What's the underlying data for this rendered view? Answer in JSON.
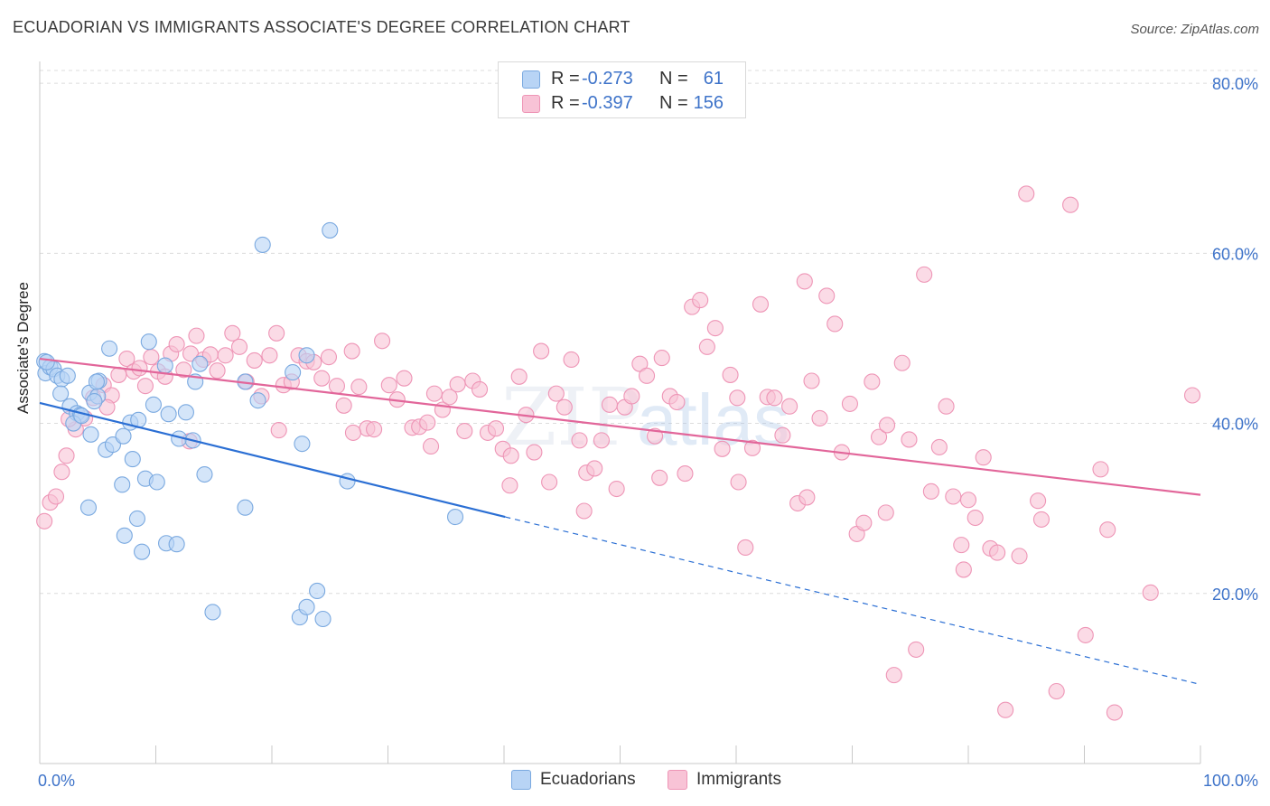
{
  "header": {
    "title": "ECUADORIAN VS IMMIGRANTS ASSOCIATE'S DEGREE CORRELATION CHART",
    "source": "Source: ZipAtlas.com"
  },
  "legend_top": {
    "rows": [
      {
        "r_label": "R =",
        "r_value": "-0.273",
        "n_label": "N =",
        "n_value": "61"
      },
      {
        "r_label": "R =",
        "r_value": "-0.397",
        "n_label": "N =",
        "n_value": "156"
      }
    ]
  },
  "legend_bottom": {
    "items": [
      {
        "label": "Ecuadorians"
      },
      {
        "label": "Immigrants"
      }
    ]
  },
  "colors": {
    "ecuadorian_fill": "#b8d4f5",
    "ecuadorian_stroke": "#7aa9e0",
    "ecuadorian_line": "#2b6fd4",
    "immigrant_fill": "#f8c3d6",
    "immigrant_stroke": "#ee95b6",
    "immigrant_line": "#e2669a",
    "value_text": "#3e73c9",
    "grid": "#dcdcdc"
  },
  "chart_data": {
    "type": "scatter",
    "title": "ECUADORIAN VS IMMIGRANTS ASSOCIATE'S DEGREE CORRELATION CHART",
    "xlabel": "",
    "ylabel": "Associate's Degree",
    "xlim": [
      0,
      100
    ],
    "ylim": [
      0,
      81.5
    ],
    "x_tick_labels": [
      "0.0%",
      "100.0%"
    ],
    "y_ticks": [
      20,
      40,
      60,
      80
    ],
    "y_tick_labels": [
      "20.0%",
      "40.0%",
      "60.0%",
      "80.0%"
    ],
    "grid": true,
    "watermark": "ZIPatlas",
    "series": [
      {
        "name": "Ecuadorians",
        "r": -0.273,
        "n": 61,
        "trend": {
          "x0": 0,
          "y0": 42.4,
          "x1": 40.1,
          "y1": 29.0,
          "dash_to_x": 100,
          "dash_to_y": 9.3
        },
        "points": [
          [
            0.4,
            47.3
          ],
          [
            0.5,
            45.9
          ],
          [
            0.9,
            46.6
          ],
          [
            1.2,
            46.4
          ],
          [
            1.5,
            45.6
          ],
          [
            1.9,
            45.2
          ],
          [
            2.4,
            45.6
          ],
          [
            1.8,
            43.5
          ],
          [
            2.6,
            42.0
          ],
          [
            3.2,
            41.2
          ],
          [
            3.5,
            41.0
          ],
          [
            2.9,
            40.0
          ],
          [
            4.3,
            43.6
          ],
          [
            5.0,
            43.2
          ],
          [
            4.7,
            42.6
          ],
          [
            6.0,
            48.8
          ],
          [
            9.4,
            49.6
          ],
          [
            7.8,
            40.1
          ],
          [
            9.8,
            42.2
          ],
          [
            11.1,
            41.1
          ],
          [
            12.6,
            41.3
          ],
          [
            13.8,
            47.0
          ],
          [
            10.8,
            46.8
          ],
          [
            8.5,
            40.4
          ],
          [
            4.4,
            38.7
          ],
          [
            5.7,
            36.9
          ],
          [
            6.3,
            37.5
          ],
          [
            8.0,
            35.8
          ],
          [
            12.0,
            38.2
          ],
          [
            13.2,
            38.0
          ],
          [
            7.2,
            38.5
          ],
          [
            5.1,
            45.0
          ],
          [
            4.9,
            44.9
          ],
          [
            9.1,
            33.5
          ],
          [
            10.1,
            33.1
          ],
          [
            7.1,
            32.8
          ],
          [
            14.2,
            34.0
          ],
          [
            17.7,
            30.1
          ],
          [
            4.2,
            30.1
          ],
          [
            8.4,
            28.8
          ],
          [
            7.3,
            26.8
          ],
          [
            10.9,
            25.9
          ],
          [
            8.8,
            24.9
          ],
          [
            11.8,
            25.8
          ],
          [
            14.9,
            17.8
          ],
          [
            22.4,
            17.2
          ],
          [
            23.9,
            20.3
          ],
          [
            24.4,
            17.0
          ],
          [
            23.0,
            18.4
          ],
          [
            25.0,
            62.7
          ],
          [
            19.2,
            61.0
          ],
          [
            21.8,
            46.0
          ],
          [
            23.0,
            48.0
          ],
          [
            17.7,
            44.9
          ],
          [
            18.8,
            42.7
          ],
          [
            22.6,
            37.6
          ],
          [
            26.5,
            33.2
          ],
          [
            35.8,
            29.0
          ],
          [
            13.4,
            44.9
          ],
          [
            3.6,
            40.9
          ],
          [
            0.6,
            47.2
          ]
        ]
      },
      {
        "name": "Immigrants",
        "r": -0.397,
        "n": 156,
        "trend": {
          "x0": 0,
          "y0": 47.6,
          "x1": 100,
          "y1": 31.6
        },
        "points": [
          [
            0.4,
            28.5
          ],
          [
            0.9,
            30.7
          ],
          [
            1.4,
            31.4
          ],
          [
            1.9,
            34.3
          ],
          [
            2.3,
            36.2
          ],
          [
            3.1,
            39.3
          ],
          [
            3.9,
            40.6
          ],
          [
            4.6,
            43.0
          ],
          [
            5.5,
            44.5
          ],
          [
            6.2,
            43.3
          ],
          [
            6.8,
            45.7
          ],
          [
            7.5,
            47.6
          ],
          [
            8.1,
            46.1
          ],
          [
            8.6,
            46.5
          ],
          [
            9.1,
            44.4
          ],
          [
            9.6,
            47.8
          ],
          [
            10.2,
            46.1
          ],
          [
            10.8,
            45.5
          ],
          [
            11.3,
            48.2
          ],
          [
            11.8,
            49.3
          ],
          [
            12.4,
            46.3
          ],
          [
            13.0,
            48.2
          ],
          [
            13.5,
            50.3
          ],
          [
            14.1,
            47.5
          ],
          [
            14.7,
            48.1
          ],
          [
            15.3,
            46.2
          ],
          [
            16.0,
            48.0
          ],
          [
            16.6,
            50.6
          ],
          [
            17.2,
            49.0
          ],
          [
            17.8,
            44.9
          ],
          [
            18.5,
            47.4
          ],
          [
            19.1,
            43.2
          ],
          [
            19.8,
            48.0
          ],
          [
            20.4,
            50.6
          ],
          [
            21.0,
            44.5
          ],
          [
            21.7,
            44.9
          ],
          [
            22.3,
            48.0
          ],
          [
            23.0,
            47.3
          ],
          [
            23.6,
            47.2
          ],
          [
            24.3,
            45.3
          ],
          [
            24.9,
            47.8
          ],
          [
            25.6,
            44.4
          ],
          [
            26.2,
            42.1
          ],
          [
            26.9,
            48.5
          ],
          [
            27.5,
            44.3
          ],
          [
            28.2,
            39.4
          ],
          [
            28.8,
            39.3
          ],
          [
            29.5,
            49.7
          ],
          [
            30.1,
            44.5
          ],
          [
            30.8,
            42.8
          ],
          [
            31.4,
            45.3
          ],
          [
            32.1,
            39.5
          ],
          [
            32.7,
            39.6
          ],
          [
            33.4,
            40.1
          ],
          [
            34.0,
            43.5
          ],
          [
            34.7,
            41.6
          ],
          [
            35.3,
            43.1
          ],
          [
            36.0,
            44.6
          ],
          [
            36.6,
            39.1
          ],
          [
            37.3,
            45.0
          ],
          [
            37.9,
            44.0
          ],
          [
            38.6,
            38.9
          ],
          [
            39.3,
            39.4
          ],
          [
            39.9,
            37.0
          ],
          [
            40.6,
            36.2
          ],
          [
            41.3,
            45.5
          ],
          [
            41.9,
            41.0
          ],
          [
            42.6,
            36.6
          ],
          [
            43.2,
            48.5
          ],
          [
            43.9,
            33.1
          ],
          [
            44.5,
            43.5
          ],
          [
            45.2,
            41.9
          ],
          [
            45.8,
            47.5
          ],
          [
            46.5,
            38.0
          ],
          [
            47.1,
            34.2
          ],
          [
            47.8,
            34.7
          ],
          [
            48.4,
            38.0
          ],
          [
            49.1,
            42.2
          ],
          [
            49.7,
            32.3
          ],
          [
            50.4,
            41.9
          ],
          [
            51.0,
            43.2
          ],
          [
            51.7,
            47.0
          ],
          [
            52.3,
            45.6
          ],
          [
            53.0,
            38.5
          ],
          [
            53.6,
            47.7
          ],
          [
            54.3,
            43.2
          ],
          [
            54.9,
            42.5
          ],
          [
            55.6,
            34.1
          ],
          [
            56.2,
            53.7
          ],
          [
            56.9,
            54.5
          ],
          [
            57.5,
            49.0
          ],
          [
            58.2,
            51.2
          ],
          [
            58.8,
            37.0
          ],
          [
            59.5,
            45.7
          ],
          [
            60.1,
            43.0
          ],
          [
            60.8,
            25.4
          ],
          [
            61.4,
            37.1
          ],
          [
            62.1,
            54.0
          ],
          [
            62.7,
            43.1
          ],
          [
            63.3,
            43.0
          ],
          [
            64.0,
            38.6
          ],
          [
            64.6,
            42.0
          ],
          [
            65.3,
            30.6
          ],
          [
            65.9,
            56.7
          ],
          [
            66.5,
            45.0
          ],
          [
            67.2,
            40.6
          ],
          [
            67.8,
            55.0
          ],
          [
            68.5,
            51.7
          ],
          [
            69.1,
            36.6
          ],
          [
            69.8,
            42.3
          ],
          [
            70.4,
            27.0
          ],
          [
            71.0,
            28.3
          ],
          [
            71.7,
            44.9
          ],
          [
            72.3,
            38.4
          ],
          [
            73.0,
            39.8
          ],
          [
            73.6,
            10.4
          ],
          [
            74.3,
            47.1
          ],
          [
            74.9,
            38.1
          ],
          [
            75.5,
            13.4
          ],
          [
            76.2,
            57.5
          ],
          [
            76.8,
            32.0
          ],
          [
            77.5,
            37.2
          ],
          [
            78.1,
            42.0
          ],
          [
            78.7,
            31.4
          ],
          [
            79.4,
            25.7
          ],
          [
            80.0,
            31.0
          ],
          [
            80.6,
            28.9
          ],
          [
            81.3,
            36.0
          ],
          [
            81.9,
            25.3
          ],
          [
            82.5,
            24.8
          ],
          [
            83.2,
            6.3
          ],
          [
            84.4,
            24.4
          ],
          [
            85.0,
            67.0
          ],
          [
            86.3,
            28.7
          ],
          [
            87.6,
            8.5
          ],
          [
            88.8,
            65.7
          ],
          [
            90.1,
            15.1
          ],
          [
            91.4,
            34.6
          ],
          [
            92.6,
            6.0
          ],
          [
            99.3,
            43.3
          ],
          [
            2.5,
            40.5
          ],
          [
            5.8,
            41.9
          ],
          [
            12.9,
            37.9
          ],
          [
            20.6,
            39.2
          ],
          [
            27.0,
            38.9
          ],
          [
            33.7,
            37.3
          ],
          [
            40.5,
            32.7
          ],
          [
            46.9,
            29.7
          ],
          [
            53.4,
            33.6
          ],
          [
            60.2,
            33.1
          ],
          [
            66.1,
            31.3
          ],
          [
            72.9,
            29.5
          ],
          [
            79.6,
            22.8
          ],
          [
            86.0,
            30.9
          ],
          [
            92.0,
            27.5
          ],
          [
            95.7,
            20.1
          ]
        ]
      }
    ]
  }
}
